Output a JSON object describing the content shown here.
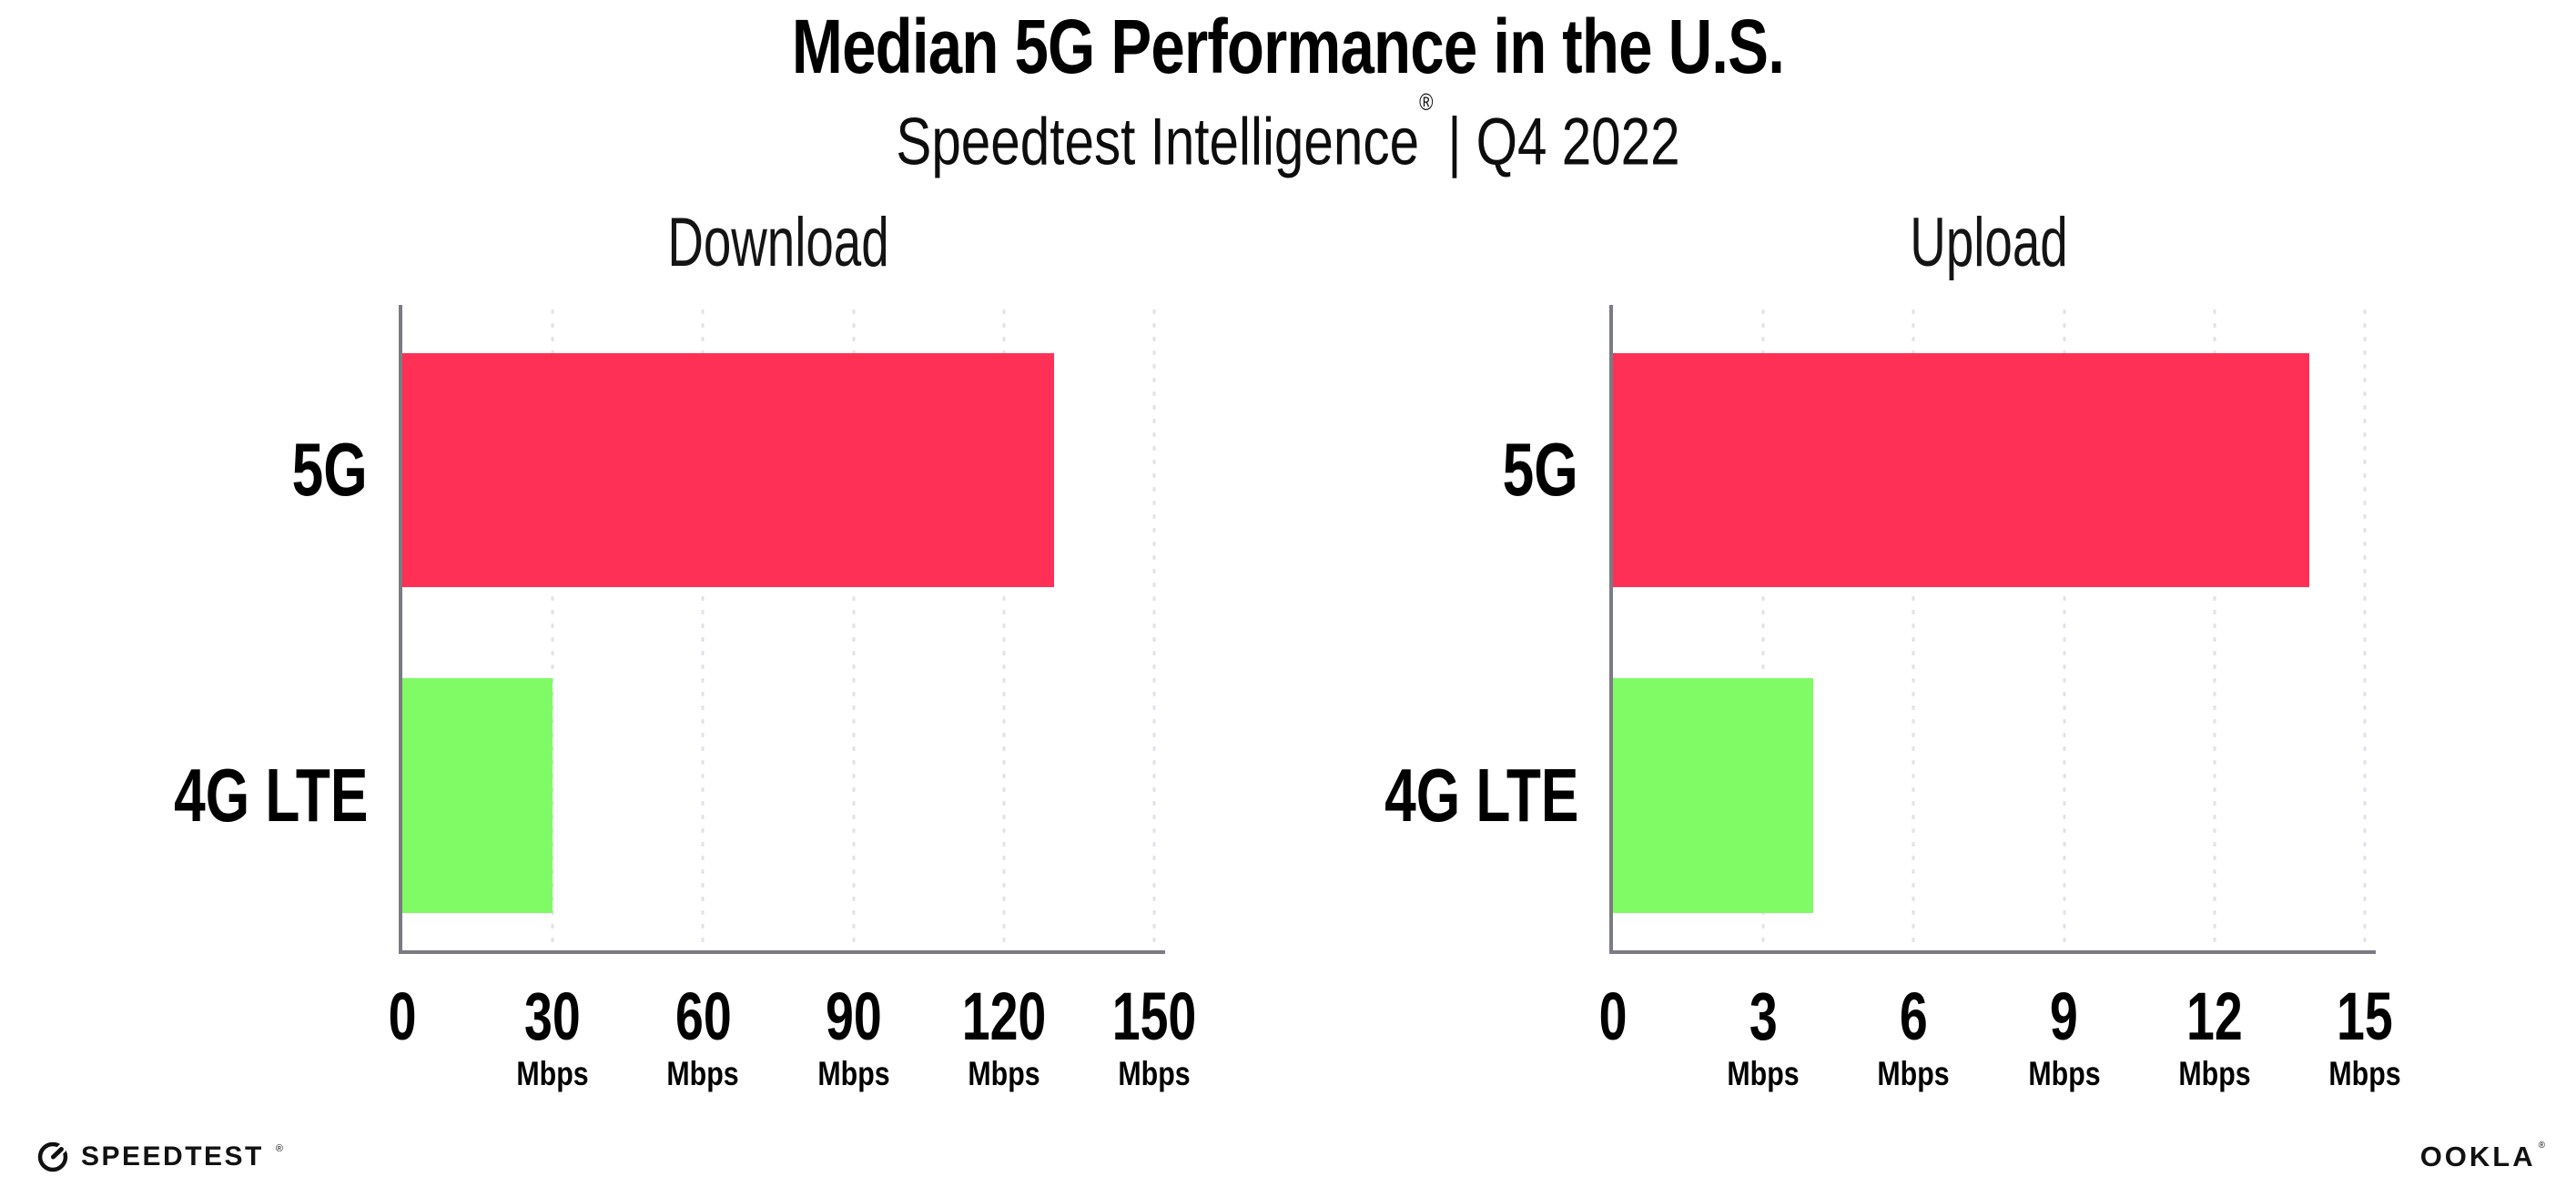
{
  "title": "Median 5G Performance in the U.S.",
  "subtitle": {
    "brand": "Speedtest Intelligence",
    "registered_mark": "®",
    "separator": "|",
    "period": "Q4 2022"
  },
  "chart_data": [
    {
      "type": "bar",
      "orientation": "horizontal",
      "title": "Download",
      "categories": [
        "5G",
        "4G LTE"
      ],
      "values": [
        130,
        30
      ],
      "unit": "Mbps",
      "xlim": [
        0,
        150
      ],
      "ticks": [
        0,
        30,
        60,
        90,
        120,
        150
      ],
      "bar_colors": [
        "#FF3056",
        "#80FB66"
      ],
      "grid": "dotted-vertical",
      "legend": "none"
    },
    {
      "type": "bar",
      "orientation": "horizontal",
      "title": "Upload",
      "categories": [
        "5G",
        "4G LTE"
      ],
      "values": [
        13.9,
        4
      ],
      "unit": "Mbps",
      "xlim": [
        0,
        15
      ],
      "ticks": [
        0,
        3,
        6,
        9,
        12,
        15
      ],
      "bar_colors": [
        "#FF3056",
        "#80FB66"
      ],
      "grid": "dotted-vertical",
      "legend": "none"
    }
  ],
  "footer": {
    "speedtest_wordmark": "SPEEDTEST",
    "speedtest_mark": "®",
    "ookla_wordmark": "OOKLA",
    "ookla_mark": "®"
  },
  "colors": {
    "bar_5g": "#FF3056",
    "bar_4g_lte": "#80FB66",
    "axis_line": "#7B7B83",
    "gridline_dot": "#E1E1EA",
    "text": "#000000",
    "background": "#FFFFFF"
  }
}
